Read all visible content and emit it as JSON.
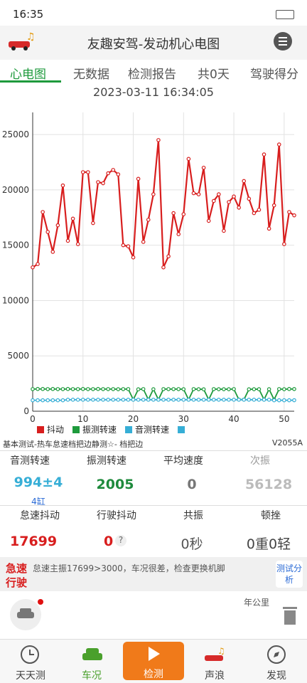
{
  "status_bar": {
    "time": "16:35"
  },
  "header": {
    "title": "友趣安驾-发动机心电图"
  },
  "tabs": [
    "心电图",
    "无数据",
    "检测报告",
    "共0天",
    "驾驶得分"
  ],
  "datetime": "2023-03-11 16:34:05",
  "chart_data": {
    "type": "line",
    "x": [
      0,
      1,
      2,
      3,
      4,
      5,
      6,
      7,
      8,
      9,
      10,
      11,
      12,
      13,
      14,
      15,
      16,
      17,
      18,
      19,
      20,
      21,
      22,
      23,
      24,
      25,
      26,
      27,
      28,
      29,
      30,
      31,
      32,
      33,
      34,
      35,
      36,
      37,
      38,
      39,
      40,
      41,
      42,
      43,
      44,
      45,
      46,
      47,
      48,
      49,
      50,
      51,
      52
    ],
    "xlim": [
      0,
      52
    ],
    "xticks": [
      0,
      10,
      20,
      30,
      40,
      50
    ],
    "ylim": [
      0,
      27000
    ],
    "yticks": [
      0,
      5000,
      10000,
      15000,
      20000,
      25000
    ],
    "grid": true,
    "series": [
      {
        "name": "抖动",
        "color": "#d81e1e",
        "values": [
          13000,
          13300,
          18000,
          16200,
          14400,
          16800,
          20400,
          15400,
          17400,
          15100,
          21600,
          21600,
          17000,
          20700,
          20600,
          21500,
          21800,
          21400,
          15000,
          14900,
          13900,
          21000,
          15300,
          17300,
          19600,
          24500,
          13000,
          14000,
          17900,
          16000,
          17800,
          22800,
          19700,
          19600,
          22000,
          17200,
          19000,
          19600,
          16300,
          18900,
          19400,
          18400,
          20800,
          19200,
          17900,
          18200,
          23200,
          16500,
          18600,
          24100,
          15100,
          18000,
          17699
        ]
      },
      {
        "name": "振测转速",
        "color": "#1e9a3c",
        "values": [
          2000,
          2010,
          2010,
          2000,
          2010,
          2000,
          2000,
          2010,
          2000,
          2000,
          2010,
          2000,
          2000,
          2010,
          2000,
          2000,
          2000,
          1990,
          2000,
          2000,
          1050,
          1980,
          2000,
          1050,
          1990,
          1050,
          2000,
          2000,
          2000,
          2000,
          1990,
          1050,
          2000,
          1990,
          1980,
          1050,
          2000,
          1990,
          1990,
          1990,
          2000,
          1050,
          1050,
          1980,
          1990,
          1990,
          1050,
          1990,
          1050,
          2000,
          1990,
          2010,
          2005
        ]
      },
      {
        "name": "音测转速",
        "color": "#36aed6",
        "values": [
          990,
          990,
          990,
          990,
          990,
          990,
          990,
          1040,
          1040,
          1040,
          1040,
          1040,
          1040,
          1040,
          1040,
          1040,
          1040,
          1040,
          1040,
          1040,
          1040,
          1040,
          1040,
          1040,
          1040,
          1040,
          1040,
          1040,
          1040,
          1040,
          1040,
          1040,
          1040,
          1040,
          1040,
          1040,
          1040,
          1040,
          1040,
          1040,
          1040,
          1040,
          1040,
          1040,
          1040,
          1040,
          1040,
          1040,
          990,
          990,
          990,
          990,
          994
        ]
      }
    ]
  },
  "caption": "基本测试-热车怠速档把边静测☆- 档把边",
  "version": "V2055A",
  "stats": {
    "sound_rpm": {
      "label": "音测转速",
      "value": "994±4",
      "sub": "4缸"
    },
    "vibe_rpm": {
      "label": "振测转速",
      "value": "2005"
    },
    "avg_speed": {
      "label": "平均速度",
      "value": "0"
    },
    "count": {
      "label": "次振",
      "value": "56128"
    },
    "idle_shake": {
      "label": "怠速抖动",
      "value": "17699"
    },
    "drive_shake": {
      "label": "行驶抖动",
      "value": "0"
    },
    "resonance": {
      "label": "共振",
      "value": "0秒"
    },
    "jerk": {
      "label": "顿挫",
      "value": "0重0轻"
    }
  },
  "alert": {
    "tag1": "急速",
    "tag2": "行驶",
    "message": "怠速主振17699>3000，车况很差，检查更换机脚",
    "button": "测试分析"
  },
  "annual_km": "年公里",
  "nav": [
    "天天测",
    "车况",
    "检测",
    "声浪",
    "发现"
  ]
}
